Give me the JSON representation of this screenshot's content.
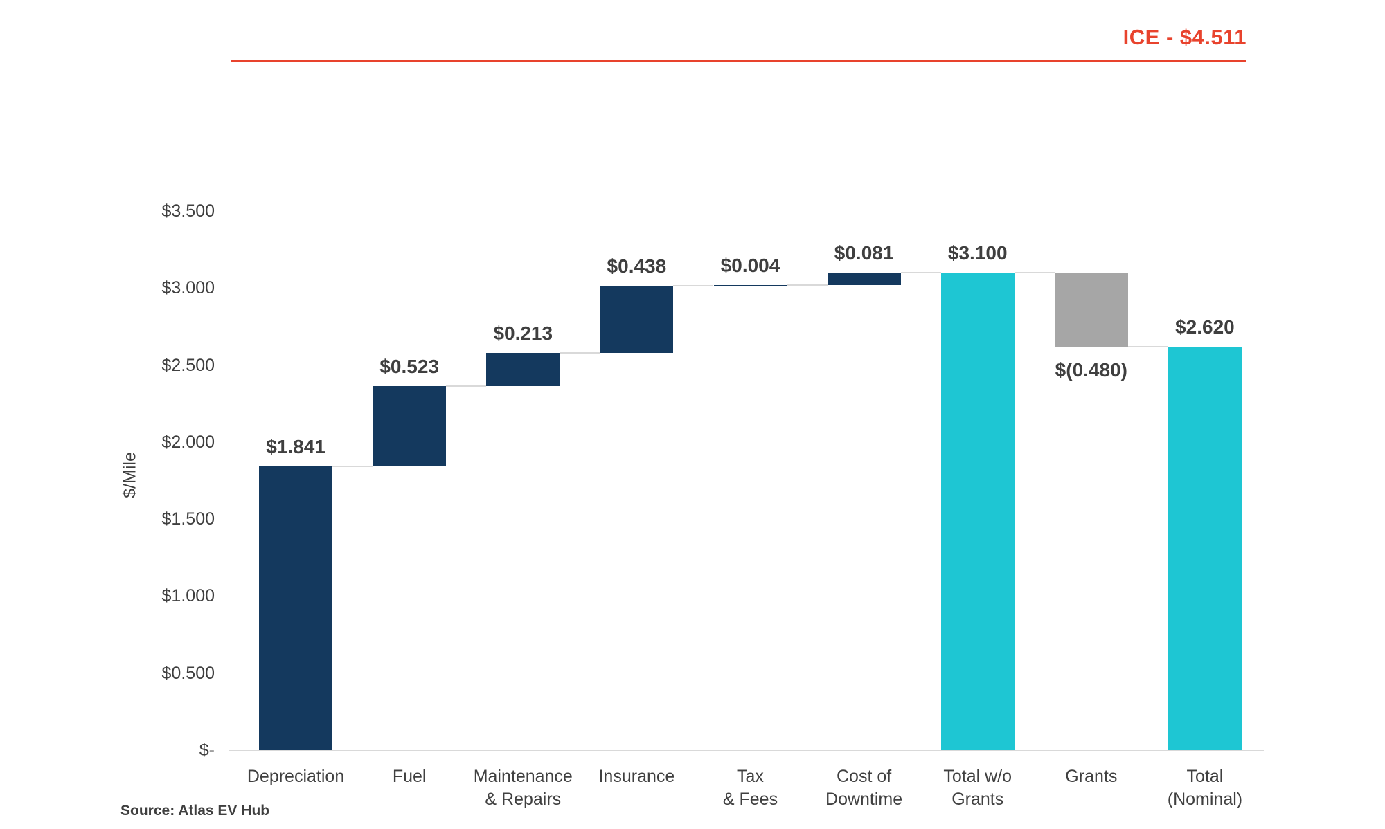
{
  "header": {
    "ice_label": "ICE - $4.511",
    "accent_color": "#E8432D"
  },
  "source_note": "Source: Atlas EV Hub",
  "chart_data": {
    "type": "bar",
    "subtype": "waterfall",
    "title": "",
    "ylabel": "$/Mile",
    "xlabel": "",
    "ylim": [
      0,
      3.5
    ],
    "ytick_interval": 0.5,
    "yticks": [
      {
        "value": 0.0,
        "label": "$-"
      },
      {
        "value": 0.5,
        "label": "$0.500"
      },
      {
        "value": 1.0,
        "label": "$1.000"
      },
      {
        "value": 1.5,
        "label": "$1.500"
      },
      {
        "value": 2.0,
        "label": "$2.000"
      },
      {
        "value": 2.5,
        "label": "$2.500"
      },
      {
        "value": 3.0,
        "label": "$3.000"
      },
      {
        "value": 3.5,
        "label": "$3.500"
      }
    ],
    "reference": {
      "label": "ICE - $4.511",
      "value": 4.511
    },
    "categories": [
      "Depreciation",
      "Fuel",
      "Maintenance & Repairs",
      "Insurance",
      "Tax & Fees",
      "Cost of Downtime",
      "Total w/o Grants",
      "Grants",
      "Total (Nominal)"
    ],
    "bars": [
      {
        "category": "Depreciation",
        "tick_lines": [
          "Depreciation"
        ],
        "value": 1.841,
        "label": "$1.841",
        "kind": "increase",
        "label_position": "above"
      },
      {
        "category": "Fuel",
        "tick_lines": [
          "Fuel"
        ],
        "value": 0.523,
        "label": "$0.523",
        "kind": "increase",
        "label_position": "above"
      },
      {
        "category": "Maintenance & Repairs",
        "tick_lines": [
          "Maintenance",
          "& Repairs"
        ],
        "value": 0.213,
        "label": "$0.213",
        "kind": "increase",
        "label_position": "above"
      },
      {
        "category": "Insurance",
        "tick_lines": [
          "Insurance"
        ],
        "value": 0.438,
        "label": "$0.438",
        "kind": "increase",
        "label_position": "above"
      },
      {
        "category": "Tax & Fees",
        "tick_lines": [
          "Tax",
          "& Fees"
        ],
        "value": 0.004,
        "label": "$0.004",
        "kind": "increase",
        "label_position": "above"
      },
      {
        "category": "Cost of Downtime",
        "tick_lines": [
          "Cost of",
          "Downtime"
        ],
        "value": 0.081,
        "label": "$0.081",
        "kind": "increase",
        "label_position": "above"
      },
      {
        "category": "Total w/o Grants",
        "tick_lines": [
          "Total w/o",
          "Grants"
        ],
        "value": 3.1,
        "label": "$3.100",
        "kind": "total",
        "label_position": "above"
      },
      {
        "category": "Grants",
        "tick_lines": [
          "Grants"
        ],
        "value": -0.48,
        "label": "$(0.480)",
        "kind": "decrease",
        "label_position": "below"
      },
      {
        "category": "Total (Nominal)",
        "tick_lines": [
          "Total",
          "(Nominal)"
        ],
        "value": 2.62,
        "label": "$2.620",
        "kind": "total",
        "label_position": "above"
      }
    ],
    "colors": {
      "increase": "#14395E",
      "decrease": "#A6A6A6",
      "total": "#1EC6D3",
      "connector": "#D9D9D9",
      "axis_line": "#D9D9D9",
      "text": "#3F3F3F",
      "reference": "#E8432D"
    },
    "legend": "none",
    "grid": "off"
  }
}
